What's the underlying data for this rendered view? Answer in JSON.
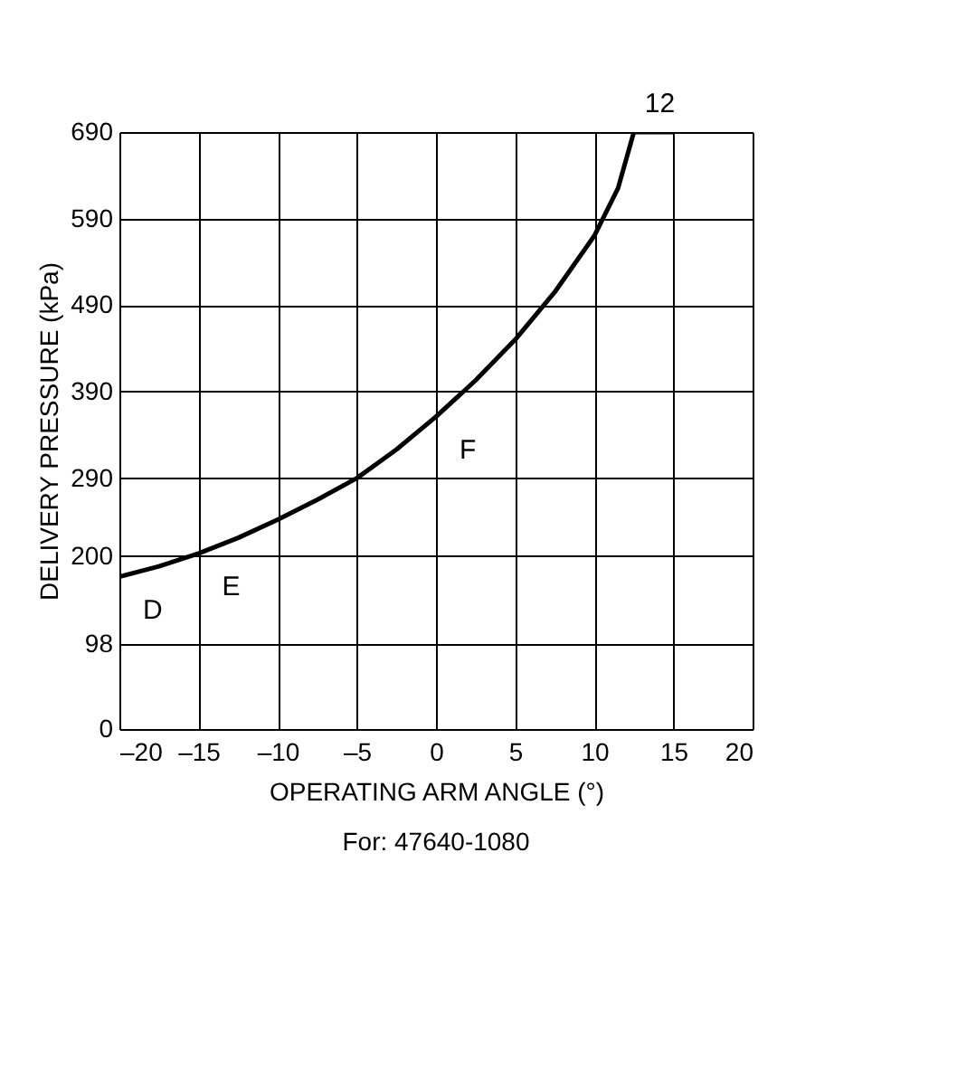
{
  "chart_data": {
    "type": "line",
    "xlabel": "OPERATING ARM ANGLE (°)",
    "ylabel": "DELIVERY PRESSURE (kPa)",
    "x": [
      -20,
      -17.5,
      -15,
      -12.5,
      -10,
      -7.5,
      -5,
      -2.5,
      0,
      2.5,
      5,
      7.5,
      10,
      11.5,
      12.5,
      15
    ],
    "series": [
      {
        "color": "#000000",
        "values": [
          176,
          188,
          203,
          221,
          242,
          265,
          290,
          323,
          361,
          403,
          450,
          505,
          570,
          625,
          690,
          690
        ]
      }
    ],
    "xlim": [
      -20,
      20
    ],
    "xticks": [
      {
        "value": -20,
        "label": "–20"
      },
      {
        "value": -15,
        "label": "–15"
      },
      {
        "value": -10,
        "label": "–10"
      },
      {
        "value": -5,
        "label": "–5"
      },
      0,
      5,
      10,
      15,
      20
    ],
    "ylim": [
      0,
      690
    ],
    "yticks": [
      0,
      98,
      200,
      290,
      390,
      490,
      590,
      690
    ],
    "grid": true,
    "marker": "none",
    "line_style": "solid",
    "annotations": [
      {
        "text": "D",
        "x": -20,
        "y": 176
      },
      {
        "text": "E",
        "x": -15,
        "y": 203
      },
      {
        "text": "F",
        "x": 0,
        "y": 361
      },
      {
        "text": "12",
        "x": 12.5,
        "y": 690
      },
      "For: 47640-1080"
    ]
  }
}
